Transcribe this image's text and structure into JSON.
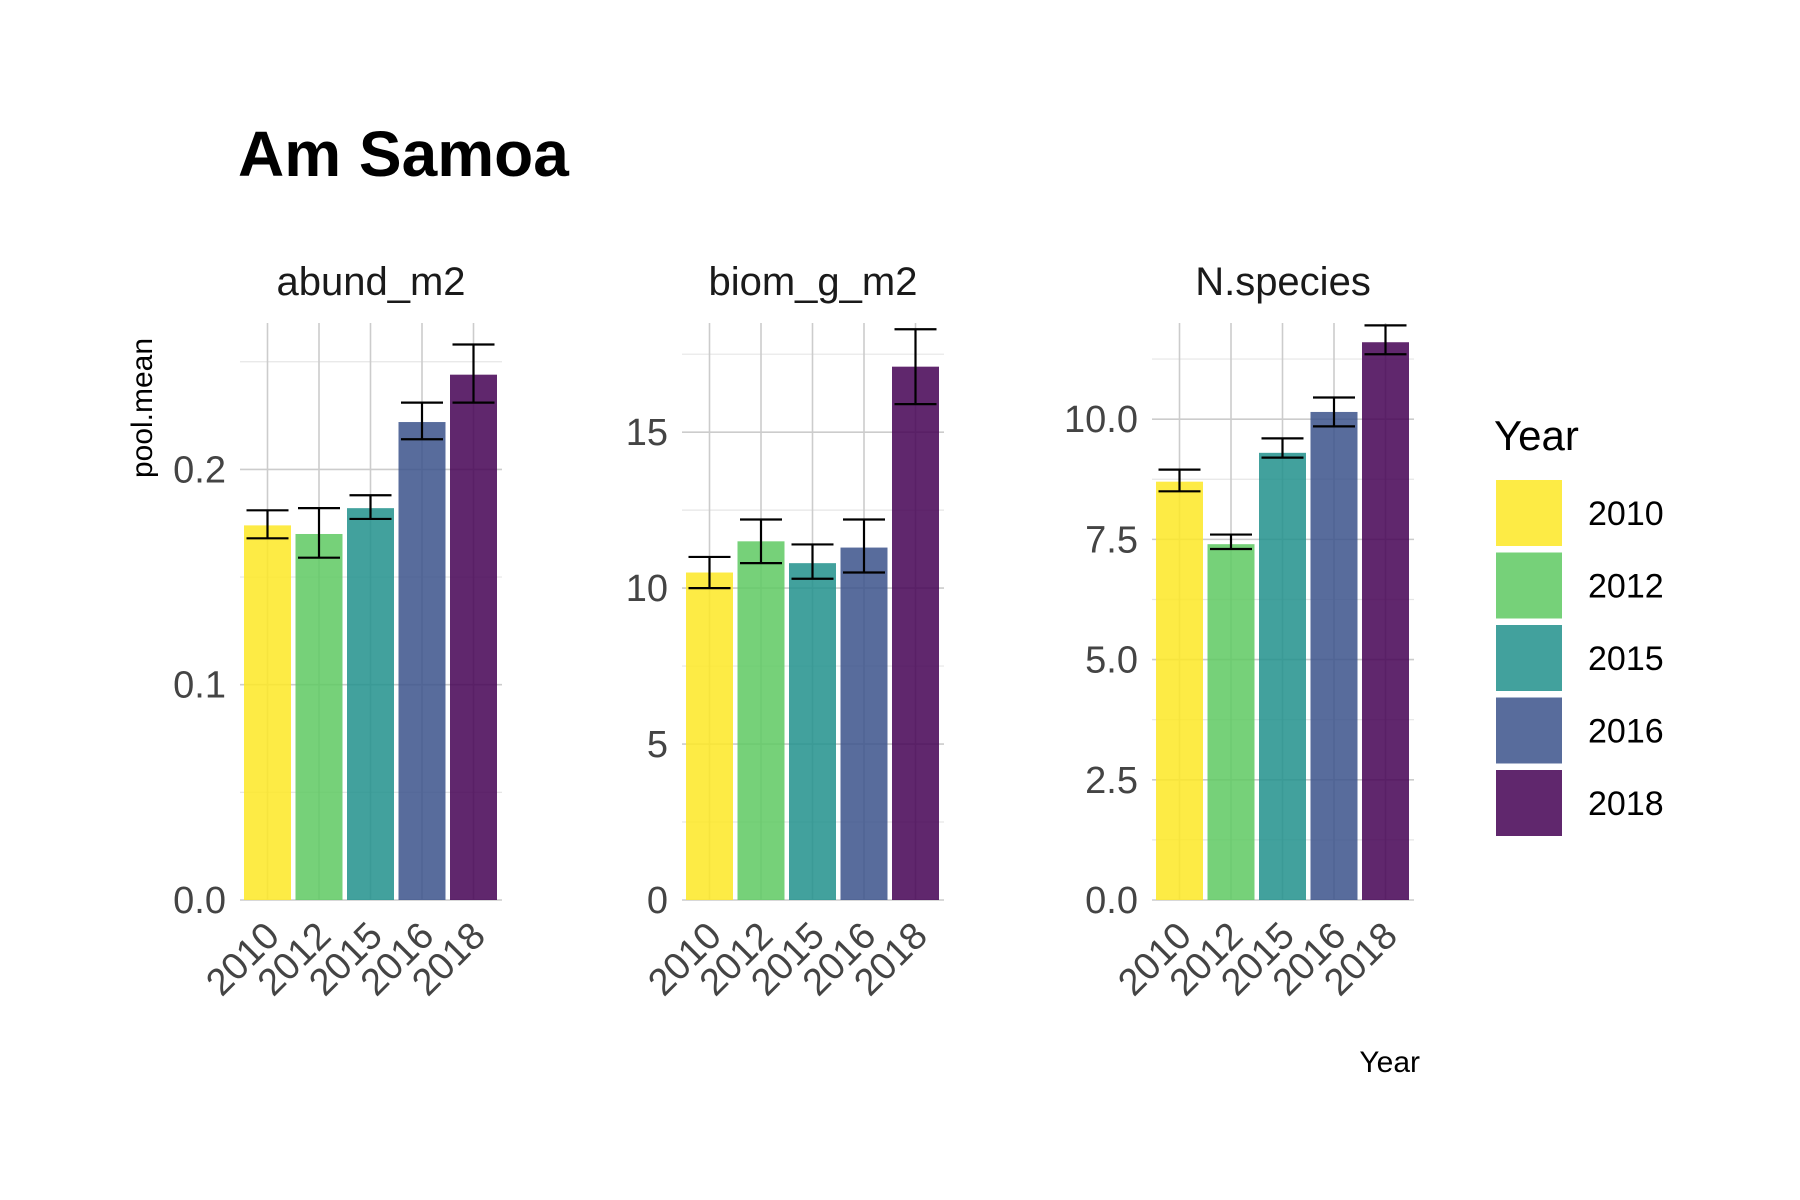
{
  "title": "Am Samoa",
  "colors": {
    "2010": "#FDE725",
    "2012": "#5EC962",
    "2015": "#21918C",
    "2016": "#3B528B",
    "2018": "#440154"
  },
  "legend": {
    "title": "Year",
    "entries": [
      "2010",
      "2012",
      "2015",
      "2016",
      "2018"
    ]
  },
  "axes": {
    "ylabel": "pool.mean",
    "xlabel": "Year"
  },
  "chart_data": [
    {
      "type": "bar",
      "panel": "abund_m2",
      "categories": [
        "2010",
        "2012",
        "2015",
        "2016",
        "2018"
      ],
      "values": [
        0.174,
        0.17,
        0.182,
        0.222,
        0.244
      ],
      "error_low": [
        0.168,
        0.159,
        0.177,
        0.214,
        0.231
      ],
      "error_high": [
        0.181,
        0.182,
        0.188,
        0.231,
        0.258
      ],
      "ylim": [
        0,
        0.268
      ],
      "yticks": [
        "0.0",
        "0.1",
        "0.2"
      ],
      "ytick_values": [
        0,
        0.1,
        0.2
      ],
      "yminor": [
        0.05,
        0.15,
        0.25
      ]
    },
    {
      "type": "bar",
      "panel": "biom_g_m2",
      "categories": [
        "2010",
        "2012",
        "2015",
        "2016",
        "2018"
      ],
      "values": [
        10.5,
        11.5,
        10.8,
        11.3,
        17.1
      ],
      "error_low": [
        10.0,
        10.8,
        10.3,
        10.5,
        15.9
      ],
      "error_high": [
        11.0,
        12.2,
        11.4,
        12.2,
        18.3
      ],
      "ylim": [
        0,
        18.5
      ],
      "yticks": [
        "0",
        "5",
        "10",
        "15"
      ],
      "ytick_values": [
        0,
        5,
        10,
        15
      ],
      "yminor": [
        2.5,
        7.5,
        12.5,
        17.5
      ]
    },
    {
      "type": "bar",
      "panel": "N.species",
      "categories": [
        "2010",
        "2012",
        "2015",
        "2016",
        "2018"
      ],
      "values": [
        8.7,
        7.4,
        9.3,
        10.15,
        11.6
      ],
      "error_low": [
        8.5,
        7.3,
        9.2,
        9.85,
        11.35
      ],
      "error_high": [
        8.95,
        7.6,
        9.6,
        10.45,
        11.95
      ],
      "ylim": [
        0,
        12.0
      ],
      "yticks": [
        "0.0",
        "2.5",
        "5.0",
        "7.5",
        "10.0"
      ],
      "ytick_values": [
        0,
        2.5,
        5.0,
        7.5,
        10.0
      ],
      "yminor": [
        1.25,
        3.75,
        6.25,
        8.75,
        11.25
      ]
    }
  ]
}
